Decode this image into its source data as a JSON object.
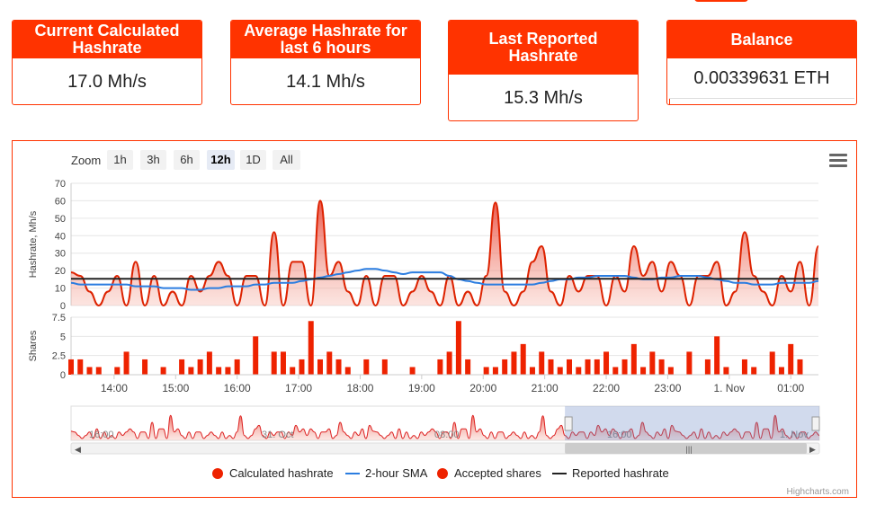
{
  "stats": [
    {
      "title": "Current Calculated Hashrate",
      "value": "17.0 Mh/s"
    },
    {
      "title": "Average Hashrate for last 6 hours",
      "value": "14.1 Mh/s"
    },
    {
      "title": "Last Reported Hashrate",
      "value": "15.3 Mh/s"
    },
    {
      "title": "Balance",
      "value": "0.00339631 ETH",
      "progress_fraction": 0.005
    }
  ],
  "toolbar": {
    "zoom_label": "Zoom",
    "zoom_buttons": [
      "1h",
      "3h",
      "6h",
      "12h",
      "1D",
      "All"
    ],
    "active_zoom": "12h"
  },
  "legend": {
    "calc": "Calculated hashrate",
    "sma": "2-hour SMA",
    "shares": "Accepted shares",
    "reported": "Reported hashrate"
  },
  "credits": "Highcharts.com",
  "colors": {
    "accent": "#ff3300",
    "series_red": "#ee2200",
    "sma_blue": "#2b7de0",
    "reported": "#222222"
  },
  "chart_data": {
    "type": "area",
    "x_tick_labels": [
      "14:00",
      "15:00",
      "16:00",
      "17:00",
      "18:00",
      "19:00",
      "20:00",
      "21:00",
      "22:00",
      "23:00",
      "1. Nov",
      "01:00"
    ],
    "x_hours": [
      13.3,
      13.45,
      13.6,
      13.75,
      13.9,
      14.05,
      14.2,
      14.35,
      14.5,
      14.65,
      14.8,
      14.95,
      15.1,
      15.25,
      15.4,
      15.55,
      15.7,
      15.85,
      16.0,
      16.15,
      16.3,
      16.45,
      16.6,
      16.75,
      16.9,
      17.05,
      17.2,
      17.35,
      17.5,
      17.65,
      17.8,
      17.95,
      18.1,
      18.25,
      18.4,
      18.55,
      18.7,
      18.85,
      19.0,
      19.15,
      19.3,
      19.45,
      19.6,
      19.75,
      19.9,
      20.05,
      20.2,
      20.35,
      20.5,
      20.65,
      20.8,
      20.95,
      21.1,
      21.25,
      21.4,
      21.55,
      21.7,
      21.85,
      22.0,
      22.15,
      22.3,
      22.45,
      22.6,
      22.75,
      22.9,
      23.05,
      23.2,
      23.35,
      23.5,
      23.65,
      23.8,
      23.95,
      24.1,
      24.25,
      24.4,
      24.55,
      24.7,
      24.85,
      25.0,
      25.15,
      25.3,
      25.45
    ],
    "hashrate": {
      "name": "Calculated hashrate",
      "ylabel": "Hashrate, Mh/s",
      "y_ticks": [
        0,
        10,
        20,
        30,
        40,
        50,
        60,
        70
      ],
      "ylim": [
        0,
        70
      ],
      "values": [
        19,
        17,
        8,
        0,
        8,
        17,
        0,
        25,
        0,
        17,
        0,
        8,
        0,
        17,
        8,
        17,
        25,
        17,
        0,
        17,
        17,
        0,
        42,
        0,
        25,
        25,
        0,
        60,
        17,
        25,
        8,
        0,
        17,
        0,
        17,
        17,
        0,
        8,
        17,
        8,
        0,
        17,
        0,
        8,
        0,
        17,
        59,
        8,
        0,
        8,
        25,
        34,
        8,
        0,
        17,
        8,
        17,
        17,
        0,
        17,
        8,
        34,
        17,
        25,
        8,
        25,
        17,
        0,
        17,
        17,
        25,
        0,
        8,
        42,
        17,
        8,
        0,
        17,
        8,
        25,
        0,
        34
      ],
      "sma_name": "2-hour SMA",
      "sma": [
        13,
        12,
        12,
        12,
        12,
        12,
        12,
        11,
        11,
        11,
        10,
        10,
        10,
        9,
        9,
        10,
        10,
        11,
        11,
        11,
        12,
        12,
        13,
        13,
        13,
        14,
        15,
        16,
        17,
        18,
        19,
        20,
        21,
        21,
        20,
        19,
        18,
        19,
        19,
        19,
        19,
        17,
        15,
        14,
        13,
        12,
        12,
        12,
        12,
        12,
        12,
        13,
        14,
        15,
        15,
        16,
        16,
        17,
        17,
        17,
        17,
        16,
        15,
        15,
        16,
        16,
        17,
        17,
        17,
        16,
        15,
        14,
        13,
        13,
        12,
        12,
        12,
        13,
        13,
        13,
        13,
        14
      ],
      "reported_name": "Reported hashrate",
      "reported": 15.3
    },
    "shares": {
      "name": "Accepted shares",
      "ylabel": "Shares",
      "y_ticks": [
        "0",
        "2.5",
        "5",
        "7.5"
      ],
      "ylim": [
        0,
        7.5
      ],
      "values": [
        2,
        2,
        1,
        1,
        0,
        1,
        3,
        0,
        2,
        0,
        1,
        0,
        2,
        1,
        2,
        3,
        1,
        1,
        2,
        0,
        5,
        0,
        3,
        3,
        1,
        2,
        7,
        2,
        3,
        2,
        1,
        0,
        2,
        0,
        2,
        0,
        0,
        1,
        0,
        0,
        2,
        3,
        7,
        2,
        0,
        1,
        1,
        2,
        3,
        4,
        1,
        3,
        2,
        1,
        2,
        1,
        2,
        2,
        3,
        1,
        2,
        4,
        1,
        3,
        2,
        1,
        0,
        3,
        0,
        2,
        5,
        1,
        0,
        2,
        1,
        0,
        3,
        1,
        4,
        2,
        0,
        0
      ],
      "x_offsets": [
        0,
        0,
        0,
        0,
        0,
        0,
        0,
        0,
        0,
        0,
        0,
        0,
        0,
        0,
        0,
        0,
        0,
        0,
        0,
        0,
        0,
        0,
        0,
        0,
        0,
        0,
        0,
        0,
        0,
        0,
        0,
        0,
        0,
        0,
        0,
        0,
        0,
        0,
        0,
        0,
        0,
        0,
        0,
        0,
        0,
        0,
        0,
        0,
        0,
        0,
        0,
        0,
        0,
        0,
        0,
        0,
        0,
        0,
        0,
        0,
        0,
        0,
        0,
        0,
        0,
        0,
        0,
        0,
        0,
        0,
        0,
        0,
        0,
        0,
        0,
        0,
        0,
        0,
        0,
        0,
        0,
        0
      ]
    },
    "navigator": {
      "tick_labels": [
        "16:00",
        "31. Oct",
        "08:00",
        "16:00",
        "1. Nov"
      ],
      "selection_fraction": [
        0.66,
        1.0
      ]
    }
  }
}
